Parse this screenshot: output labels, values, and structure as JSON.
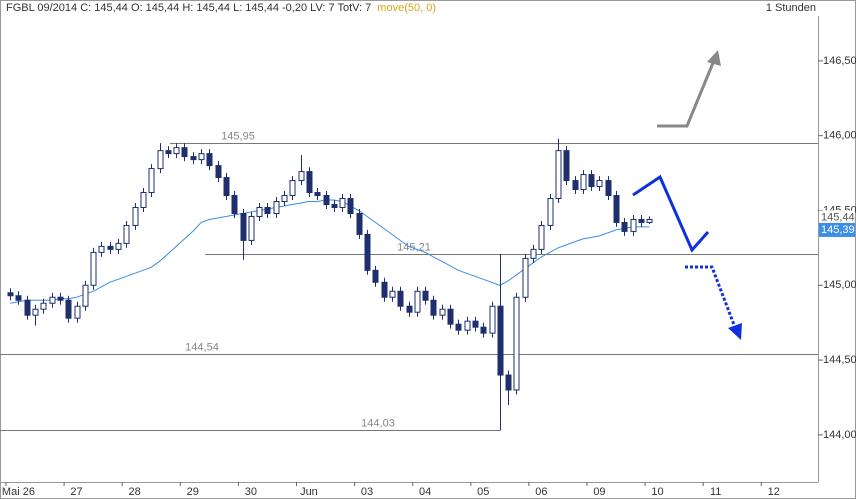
{
  "chart_data": {
    "type": "candlestick",
    "title": "FGBL 09/2014  C: 145,44  O: 145,44  H: 145,44  L: 145,44  -0,20  LV: 7  TotV: 7",
    "timeframe": "1 Stunden",
    "categories": [
      null,
      "Mai 26",
      null,
      null,
      null,
      null,
      null,
      null,
      "27",
      null,
      null,
      null,
      null,
      null,
      null,
      "28",
      null,
      null,
      null,
      null,
      null,
      null,
      "29",
      null,
      null,
      null,
      null,
      null,
      null,
      "30",
      null,
      null,
      null,
      null,
      null,
      null,
      "Jun",
      null,
      null,
      null,
      null,
      null,
      null,
      "03",
      null,
      null,
      null,
      null,
      null,
      null,
      "04",
      null,
      null,
      null,
      null,
      null,
      null,
      "05",
      null,
      null,
      null,
      null,
      null,
      null,
      "06",
      null,
      null,
      null,
      null,
      null,
      null,
      "09",
      null,
      null,
      null,
      null,
      null,
      null,
      "10",
      null,
      null,
      null,
      null,
      null,
      null,
      "11",
      null,
      null,
      null,
      null,
      null,
      null,
      "12",
      null,
      null,
      null,
      null,
      null
    ],
    "open": [
      144.95,
      144.93,
      144.9,
      144.8,
      144.84,
      144.88,
      144.92,
      144.9,
      144.78,
      144.86,
      145.0,
      145.22,
      145.26,
      145.24,
      145.28,
      145.4,
      145.52,
      145.62,
      145.78,
      145.9,
      145.88,
      145.92,
      145.86,
      145.84,
      145.88,
      145.8,
      145.72,
      145.6,
      145.48,
      145.3,
      145.46,
      145.52,
      145.48,
      145.56,
      145.6,
      145.7,
      145.76,
      145.62,
      145.6,
      145.54,
      145.52,
      145.58,
      145.48,
      145.34,
      145.1,
      145.02,
      144.92,
      144.96,
      144.86,
      144.82,
      144.96,
      144.9,
      144.8,
      144.84,
      144.74,
      144.7,
      144.76,
      144.72,
      144.68,
      144.86,
      144.4,
      144.3,
      144.92,
      145.18,
      145.24,
      145.4,
      145.58,
      145.9,
      145.7,
      145.64,
      145.74,
      145.66,
      145.7,
      145.6,
      145.42,
      145.36,
      145.44,
      145.42,
      null,
      null,
      null,
      null,
      null,
      null,
      null,
      null,
      null,
      null,
      null,
      null,
      null,
      null,
      null,
      null,
      null,
      null,
      null,
      null
    ],
    "high": [
      144.98,
      144.96,
      144.93,
      144.87,
      144.91,
      144.95,
      144.95,
      144.93,
      144.89,
      145.03,
      145.25,
      145.29,
      145.29,
      145.31,
      145.43,
      145.55,
      145.65,
      145.81,
      145.95,
      145.93,
      145.95,
      145.95,
      145.89,
      145.91,
      145.91,
      145.83,
      145.75,
      145.63,
      145.51,
      145.49,
      145.55,
      145.55,
      145.59,
      145.63,
      145.73,
      145.87,
      145.79,
      145.65,
      145.63,
      145.57,
      145.61,
      145.61,
      145.51,
      145.37,
      145.13,
      145.05,
      144.99,
      144.99,
      144.89,
      144.99,
      144.99,
      144.93,
      144.87,
      144.87,
      144.77,
      144.79,
      144.79,
      144.75,
      144.89,
      145.21,
      144.43,
      144.95,
      145.21,
      145.27,
      145.43,
      145.61,
      145.98,
      145.93,
      145.73,
      145.77,
      145.77,
      145.73,
      145.73,
      145.63,
      145.45,
      145.47,
      145.47,
      145.46,
      null,
      null,
      null,
      null,
      null,
      null,
      null,
      null,
      null,
      null,
      null,
      null,
      null,
      null,
      null,
      null,
      null,
      null,
      null,
      null
    ],
    "low": [
      144.9,
      144.87,
      144.77,
      144.73,
      144.81,
      144.85,
      144.87,
      144.75,
      144.75,
      144.83,
      144.97,
      145.19,
      145.21,
      145.21,
      145.25,
      145.37,
      145.49,
      145.59,
      145.75,
      145.85,
      145.85,
      145.83,
      145.81,
      145.81,
      145.77,
      145.69,
      145.57,
      145.45,
      145.17,
      145.27,
      145.43,
      145.45,
      145.45,
      145.53,
      145.57,
      145.67,
      145.59,
      145.57,
      145.51,
      145.49,
      145.49,
      145.45,
      145.31,
      145.07,
      144.99,
      144.89,
      144.89,
      144.83,
      144.79,
      144.79,
      144.87,
      144.77,
      144.77,
      144.71,
      144.67,
      144.67,
      144.69,
      144.65,
      144.65,
      144.03,
      144.2,
      144.27,
      144.89,
      145.15,
      145.21,
      145.37,
      145.55,
      145.67,
      145.61,
      145.61,
      145.63,
      145.63,
      145.57,
      145.39,
      145.33,
      145.33,
      145.39,
      145.41,
      null,
      null,
      null,
      null,
      null,
      null,
      null,
      null,
      null,
      null,
      null,
      null,
      null,
      null,
      null,
      null,
      null,
      null,
      null,
      null
    ],
    "close": [
      144.93,
      144.9,
      144.8,
      144.84,
      144.88,
      144.92,
      144.9,
      144.78,
      144.86,
      145.0,
      145.22,
      145.26,
      145.24,
      145.28,
      145.4,
      145.52,
      145.62,
      145.78,
      145.9,
      145.88,
      145.92,
      145.86,
      145.84,
      145.88,
      145.8,
      145.72,
      145.6,
      145.48,
      145.3,
      145.46,
      145.52,
      145.48,
      145.56,
      145.6,
      145.7,
      145.76,
      145.62,
      145.6,
      145.54,
      145.52,
      145.58,
      145.48,
      145.34,
      145.1,
      145.02,
      144.92,
      144.96,
      144.86,
      144.82,
      144.96,
      144.9,
      144.8,
      144.84,
      144.74,
      144.7,
      144.76,
      144.72,
      144.68,
      144.86,
      144.4,
      144.3,
      144.92,
      145.18,
      145.24,
      145.4,
      145.58,
      145.9,
      145.7,
      145.64,
      145.74,
      145.66,
      145.7,
      145.6,
      145.42,
      145.36,
      145.44,
      145.42,
      145.44,
      null,
      null,
      null,
      null,
      null,
      null,
      null,
      null,
      null,
      null,
      null,
      null,
      null,
      null,
      null,
      null,
      null,
      null,
      null,
      null
    ],
    "series": [
      {
        "name": "move(50, 0)",
        "color": "#3a8ee6",
        "values": [
          144.88,
          144.89,
          144.9,
          144.9,
          144.9,
          144.9,
          144.91,
          144.91,
          144.92,
          144.94,
          144.96,
          144.99,
          145.02,
          145.04,
          145.06,
          145.08,
          145.1,
          145.12,
          145.16,
          145.21,
          145.26,
          145.31,
          145.36,
          145.42,
          145.44,
          145.45,
          145.46,
          145.47,
          145.48,
          145.49,
          145.5,
          145.51,
          145.52,
          145.53,
          145.54,
          145.55,
          145.56,
          145.56,
          145.57,
          145.57,
          145.56,
          145.53,
          145.5,
          145.46,
          145.42,
          145.38,
          145.34,
          145.3,
          145.26,
          145.24,
          145.22,
          145.19,
          145.16,
          145.13,
          145.1,
          145.08,
          145.06,
          145.04,
          145.02,
          145.0,
          145.03,
          145.07,
          145.11,
          145.15,
          145.19,
          145.22,
          145.25,
          145.27,
          145.29,
          145.31,
          145.32,
          145.33,
          145.35,
          145.37,
          145.38,
          145.39,
          145.39,
          145.39,
          null,
          null,
          null,
          null,
          null,
          null,
          null,
          null,
          null,
          null,
          null,
          null,
          null,
          null,
          null,
          null,
          null,
          null,
          null,
          null
        ]
      }
    ],
    "up_color": "#ffffff",
    "down_color": "#1f2f6e",
    "levels": [
      {
        "value": 145.95,
        "label": "145,95"
      },
      {
        "value": 145.21,
        "label": "145,21"
      },
      {
        "value": 144.54,
        "label": "144,54"
      },
      {
        "value": 144.03,
        "label": "144,03"
      }
    ],
    "price_labels": [
      {
        "value": 145.44,
        "label": "145,44"
      },
      {
        "value": 145.39,
        "label": "145,39"
      }
    ],
    "ylim": [
      143.685,
      146.8
    ],
    "yticks": [
      {
        "value": 144.0,
        "label": "144,00"
      },
      {
        "value": 144.5,
        "label": "144,50"
      },
      {
        "value": 145.0,
        "label": "145,00"
      },
      {
        "value": 145.5,
        "label": "145,50"
      },
      {
        "value": 146.0,
        "label": "146,00"
      },
      {
        "value": 146.5,
        "label": "146,50"
      }
    ]
  }
}
